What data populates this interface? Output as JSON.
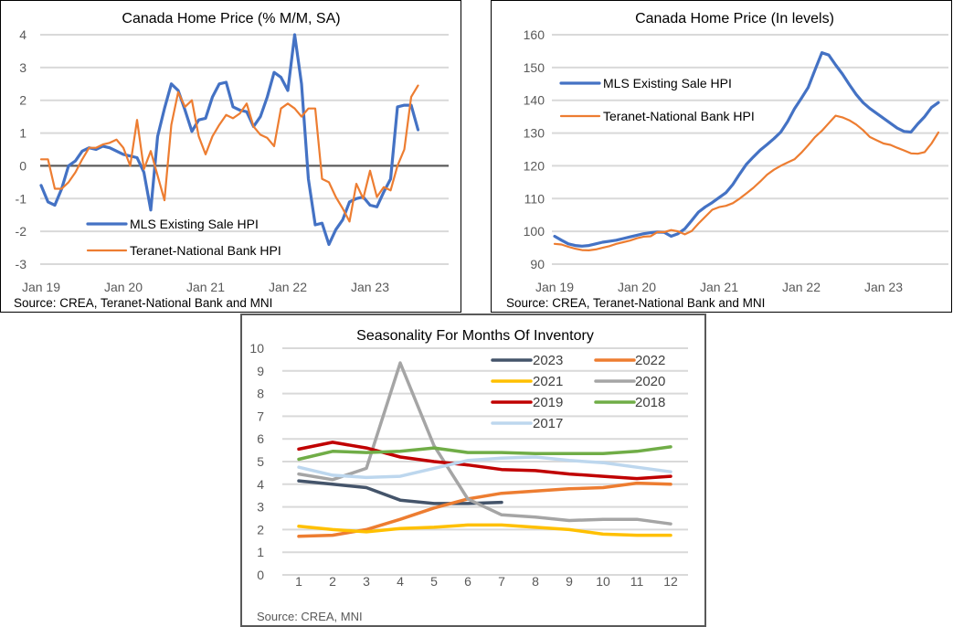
{
  "chart_data": [
    {
      "id": "mm",
      "type": "line",
      "title": "Canada Home Price (% M/M, SA)",
      "xlabel": "",
      "ylabel": "",
      "ylim": [
        -3,
        4
      ],
      "yticks": [
        4,
        3,
        2,
        1,
        0,
        -1,
        -2,
        -3
      ],
      "xtick_labels": [
        "Jan 19",
        "Jan 20",
        "Jan 21",
        "Jan 22",
        "Jan 23"
      ],
      "x_start": "Jan 19",
      "x_end": "Jul 23",
      "grid": true,
      "zero_line": true,
      "legend_position": "lower-left",
      "source": "Source: CREA, Teranet-National Bank and MNI",
      "series": [
        {
          "name": "MLS Existing Sale HPI",
          "color": "#4472c4",
          "values": [
            -0.6,
            -1.1,
            -1.2,
            -0.7,
            0.0,
            0.15,
            0.45,
            0.55,
            0.5,
            0.6,
            0.55,
            0.45,
            0.35,
            0.3,
            0.25,
            -0.2,
            -1.35,
            0.9,
            1.75,
            2.5,
            2.3,
            1.7,
            1.05,
            1.4,
            1.45,
            2.1,
            2.5,
            2.55,
            1.8,
            1.7,
            1.65,
            1.2,
            1.5,
            2.1,
            2.85,
            2.7,
            2.3,
            4.0,
            2.5,
            -0.4,
            -1.8,
            -1.75,
            -2.4,
            -1.95,
            -1.65,
            -1.1,
            -1.0,
            -0.95,
            -1.2,
            -1.25,
            -0.8,
            -0.4,
            1.8,
            1.85,
            1.85,
            1.1
          ]
        },
        {
          "name": "Teranet-National Bank HPI",
          "color": "#ed7d31",
          "values": [
            0.2,
            0.2,
            -0.7,
            -0.7,
            -0.5,
            -0.2,
            0.2,
            0.55,
            0.55,
            0.65,
            0.7,
            0.8,
            0.55,
            0.0,
            1.4,
            -0.1,
            0.45,
            -0.3,
            -1.05,
            1.25,
            2.25,
            1.8,
            2.0,
            0.9,
            0.35,
            0.9,
            1.25,
            1.55,
            1.45,
            1.6,
            1.9,
            1.2,
            0.95,
            0.85,
            0.6,
            1.75,
            1.9,
            1.75,
            1.5,
            1.75,
            1.75,
            -0.4,
            -0.5,
            -0.95,
            -1.3,
            -1.7,
            -0.55,
            -1.0,
            -0.15,
            -0.95,
            -0.65,
            -0.75,
            0.0,
            0.5,
            2.1,
            2.45
          ]
        }
      ]
    },
    {
      "id": "lvl",
      "type": "line",
      "title": "Canada Home Price (In levels)",
      "xlabel": "",
      "ylabel": "",
      "ylim": [
        90,
        160
      ],
      "yticks": [
        160,
        150,
        140,
        130,
        120,
        110,
        100,
        90
      ],
      "xtick_labels": [
        "Jan 19",
        "Jan 20",
        "Jan 21",
        "Jan 22",
        "Jan 23"
      ],
      "x_start": "Jan 19",
      "x_end": "Jul 23",
      "grid": true,
      "legend_position": "upper-left",
      "source": "Source: CREA, Teranet-National Bank and MNI",
      "series": [
        {
          "name": "MLS Existing Sale HPI",
          "color": "#4472c4",
          "values": [
            98.5,
            97.3,
            96.2,
            95.7,
            95.5,
            95.7,
            96.2,
            96.7,
            97.0,
            97.3,
            97.8,
            98.3,
            98.8,
            99.3,
            99.6,
            99.8,
            99.7,
            98.5,
            99.3,
            100.8,
            103.3,
            105.9,
            107.5,
            108.8,
            110.3,
            111.8,
            114.3,
            117.5,
            120.5,
            122.7,
            124.8,
            126.5,
            128.3,
            130.3,
            133.5,
            137.4,
            140.6,
            143.9,
            149.3,
            154.5,
            153.8,
            150.8,
            148.0,
            144.8,
            141.8,
            139.3,
            137.5,
            136.0,
            134.5,
            133.0,
            131.5,
            130.5,
            130.3,
            132.8,
            135.0,
            137.8,
            139.3
          ]
        },
        {
          "name": "Teranet-National Bank HPI",
          "color": "#ed7d31",
          "values": [
            96.2,
            96.0,
            95.3,
            94.7,
            94.3,
            94.2,
            94.5,
            95.0,
            95.5,
            96.2,
            96.7,
            97.2,
            97.9,
            98.4,
            98.5,
            99.8,
            99.8,
            100.4,
            100.0,
            99.1,
            100.1,
            102.4,
            104.5,
            106.6,
            107.4,
            107.8,
            108.6,
            110.0,
            111.6,
            113.3,
            115.2,
            117.3,
            118.8,
            120.0,
            121.0,
            122.0,
            124.0,
            126.3,
            128.8,
            130.7,
            133.0,
            135.3,
            134.8,
            133.9,
            132.6,
            130.9,
            128.8,
            127.8,
            126.8,
            126.4,
            125.5,
            124.7,
            123.8,
            123.7,
            124.2,
            126.8,
            130.2
          ]
        }
      ]
    },
    {
      "id": "inv",
      "type": "line",
      "title": "Seasonality For Months Of Inventory",
      "xlabel": "",
      "ylabel": "",
      "ylim": [
        0,
        10
      ],
      "yticks": [
        10,
        9,
        8,
        7,
        6,
        5,
        4,
        3,
        2,
        1,
        0
      ],
      "categories": [
        "1",
        "2",
        "3",
        "4",
        "5",
        "6",
        "7",
        "8",
        "9",
        "10",
        "11",
        "12"
      ],
      "grid": true,
      "legend_position": "top-right",
      "source": "Source: CREA, MNI",
      "series": [
        {
          "name": "2023",
          "color": "#44546a",
          "values": [
            4.15,
            4.0,
            3.85,
            3.3,
            3.15,
            3.15,
            3.2
          ]
        },
        {
          "name": "2022",
          "color": "#ed7d31",
          "values": [
            1.7,
            1.75,
            2.0,
            2.45,
            2.95,
            3.35,
            3.6,
            3.7,
            3.8,
            3.85,
            4.05,
            4.0
          ]
        },
        {
          "name": "2021",
          "color": "#ffc000",
          "values": [
            2.15,
            2.0,
            1.9,
            2.05,
            2.1,
            2.2,
            2.2,
            2.1,
            2.0,
            1.8,
            1.75,
            1.75
          ]
        },
        {
          "name": "2020",
          "color": "#a5a5a5",
          "values": [
            4.45,
            4.2,
            4.7,
            9.35,
            5.7,
            3.35,
            2.65,
            2.55,
            2.4,
            2.45,
            2.45,
            2.25
          ]
        },
        {
          "name": "2019",
          "color": "#c00000",
          "values": [
            5.55,
            5.85,
            5.6,
            5.2,
            5.0,
            4.85,
            4.65,
            4.6,
            4.45,
            4.35,
            4.25,
            4.35
          ]
        },
        {
          "name": "2018",
          "color": "#70ad47",
          "values": [
            5.1,
            5.45,
            5.4,
            5.45,
            5.6,
            5.4,
            5.4,
            5.35,
            5.35,
            5.35,
            5.45,
            5.65
          ]
        },
        {
          "name": "2017",
          "color": "#bdd7ee",
          "values": [
            4.75,
            4.4,
            4.3,
            4.35,
            4.7,
            5.05,
            5.15,
            5.2,
            5.05,
            4.95,
            4.75,
            4.55
          ]
        }
      ]
    }
  ]
}
